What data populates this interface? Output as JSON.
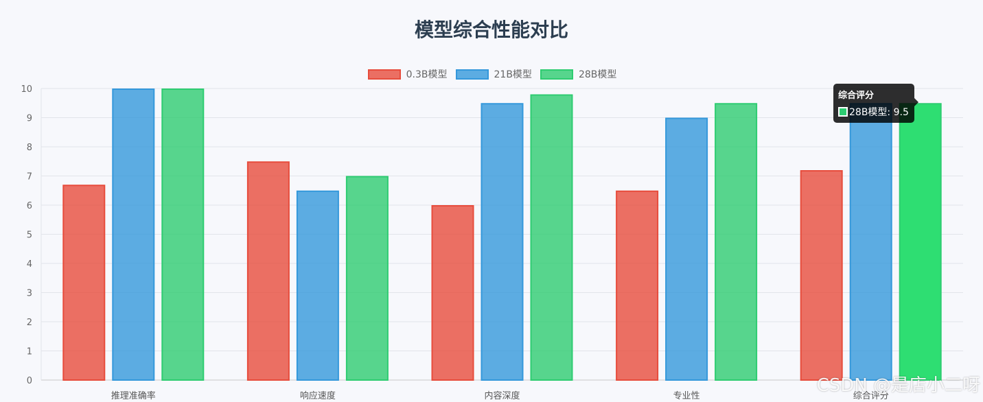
{
  "chart_data": {
    "type": "bar",
    "title": "模型综合性能对比",
    "categories": [
      "推理准确率",
      "响应速度",
      "内容深度",
      "专业性",
      "综合评分"
    ],
    "series": [
      {
        "name": "0.3B模型",
        "values": [
          6.7,
          7.5,
          6.0,
          6.5,
          7.2
        ],
        "color": "#e74c3c"
      },
      {
        "name": "21B模型",
        "values": [
          10,
          6.5,
          9.5,
          9.0,
          9.5
        ],
        "color": "#3498db"
      },
      {
        "name": "28B模型",
        "values": [
          10,
          7.0,
          9.8,
          9.5,
          9.5
        ],
        "color": "#2ecc71"
      }
    ],
    "ylim": [
      0,
      10
    ],
    "yticks": [
      "0",
      "1",
      "2",
      "3",
      "4",
      "5",
      "6",
      "7",
      "8",
      "9",
      "10"
    ],
    "grid": true,
    "legend_position": "top-center",
    "highlight": {
      "series": 2,
      "category": 4
    }
  },
  "tooltip": {
    "title": "综合评分",
    "label": "28B模型: 9.5",
    "color": "#2ecc71"
  },
  "watermark": "CSDN @是店小二呀"
}
